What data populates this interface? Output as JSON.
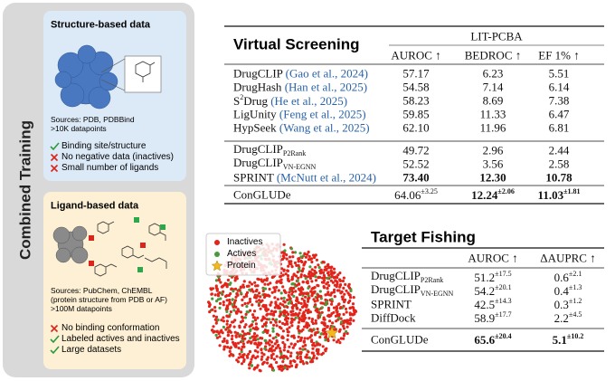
{
  "left_panel": {
    "title": "Combined Training",
    "structure": {
      "title": "Structure-based data",
      "sources": [
        "Sources: PDB, PDBBind",
        ">10K datapoints"
      ],
      "points": [
        {
          "kind": "check",
          "text": "Binding site/structure"
        },
        {
          "kind": "cross",
          "text": "No negative data (inactives)"
        },
        {
          "kind": "cross",
          "text": "Small number of ligands"
        }
      ]
    },
    "ligand": {
      "title": "Ligand-based data",
      "sources": [
        "Sources: PubChem, ChEMBL",
        "(protein structure from PDB or AF)",
        ">100M datapoints"
      ],
      "points": [
        {
          "kind": "cross",
          "text": "No binding conformation"
        },
        {
          "kind": "check",
          "text": "Labeled actives and inactives"
        },
        {
          "kind": "check",
          "text": "Large datasets"
        }
      ]
    }
  },
  "embedding_plot": {
    "legend": [
      {
        "label": "Inactives",
        "color": "#e3241b"
      },
      {
        "label": "Actives",
        "color": "#4a9a3c"
      },
      {
        "label": "Protein",
        "color": "#f2b81d"
      }
    ]
  },
  "virtual_screening": {
    "title": "Virtual Screening",
    "group_header": "LIT-PCBA",
    "columns": [
      "AUROC ↑",
      "BEDROC ↑",
      "EF 1% ↑"
    ],
    "groups": [
      [
        {
          "name": "DrugCLIP",
          "cite": "(Gao et al., 2024)",
          "cells": [
            {
              "v": "57.17"
            },
            {
              "v": "6.23"
            },
            {
              "v": "5.51"
            }
          ]
        },
        {
          "name": "DrugHash",
          "cite": "(Han et al., 2025)",
          "cells": [
            {
              "v": "54.58"
            },
            {
              "v": "7.14"
            },
            {
              "v": "6.14"
            }
          ]
        },
        {
          "name": "S",
          "sup": "2",
          "name2": "Drug",
          "cite": "(He et al., 2025)",
          "cells": [
            {
              "v": "58.23"
            },
            {
              "v": "8.69"
            },
            {
              "v": "7.38"
            }
          ]
        },
        {
          "name": "LigUnity",
          "cite": "(Feng et al., 2025)",
          "cells": [
            {
              "v": "59.85"
            },
            {
              "v": "11.33"
            },
            {
              "v": "6.47"
            }
          ]
        },
        {
          "name": "HypSeek",
          "cite": "(Wang et al., 2025)",
          "cells": [
            {
              "v": "62.10"
            },
            {
              "v": "11.96"
            },
            {
              "v": "6.81"
            }
          ]
        }
      ],
      [
        {
          "name": "DrugCLIP",
          "sub": "P2Rank",
          "cells": [
            {
              "v": "49.72"
            },
            {
              "v": "2.96"
            },
            {
              "v": "2.44"
            }
          ]
        },
        {
          "name": "DrugCLIP",
          "sub": "VN-EGNN",
          "cells": [
            {
              "v": "52.52"
            },
            {
              "v": "3.56"
            },
            {
              "v": "2.58"
            }
          ]
        },
        {
          "name": "SPRINT",
          "cite": "(McNutt et al., 2024)",
          "cells": [
            {
              "v": "73.40",
              "bold": true
            },
            {
              "v": "12.30",
              "bold": true
            },
            {
              "v": "10.78",
              "bold": true
            }
          ]
        }
      ],
      [
        {
          "name": "ConGLUDe",
          "cells": [
            {
              "v": "64.06",
              "sup": "±3.25"
            },
            {
              "v": "12.24",
              "sup": "±2.06",
              "bold": true
            },
            {
              "v": "11.03",
              "sup": "±1.81",
              "bold": true
            }
          ]
        }
      ]
    ]
  },
  "target_fishing": {
    "title": "Target Fishing",
    "columns": [
      "AUROC ↑",
      "ΔAUPRC ↑"
    ],
    "groups": [
      [
        {
          "name": "DrugCLIP",
          "sub": "P2Rank",
          "cells": [
            {
              "v": "51.2",
              "sup": "±17.5"
            },
            {
              "v": "0.6",
              "sup": "±2.1"
            }
          ]
        },
        {
          "name": "DrugCLIP",
          "sub": "VN-EGNN",
          "cells": [
            {
              "v": "54.2",
              "sup": "±20.1"
            },
            {
              "v": "0.4",
              "sup": "±1.3"
            }
          ]
        },
        {
          "name": "SPRINT",
          "cells": [
            {
              "v": "42.5",
              "sup": "±14.3"
            },
            {
              "v": "0.3",
              "sup": "±1.2"
            }
          ]
        },
        {
          "name": "DiffDock",
          "cells": [
            {
              "v": "58.9",
              "sup": "±17.7"
            },
            {
              "v": "2.2",
              "sup": "±4.5"
            }
          ]
        }
      ],
      [
        {
          "name": "ConGLUDe",
          "cells": [
            {
              "v": "65.6",
              "sup": "±20.4",
              "bold": true
            },
            {
              "v": "5.1",
              "sup": "±10.2",
              "bold": true
            }
          ]
        }
      ]
    ]
  }
}
